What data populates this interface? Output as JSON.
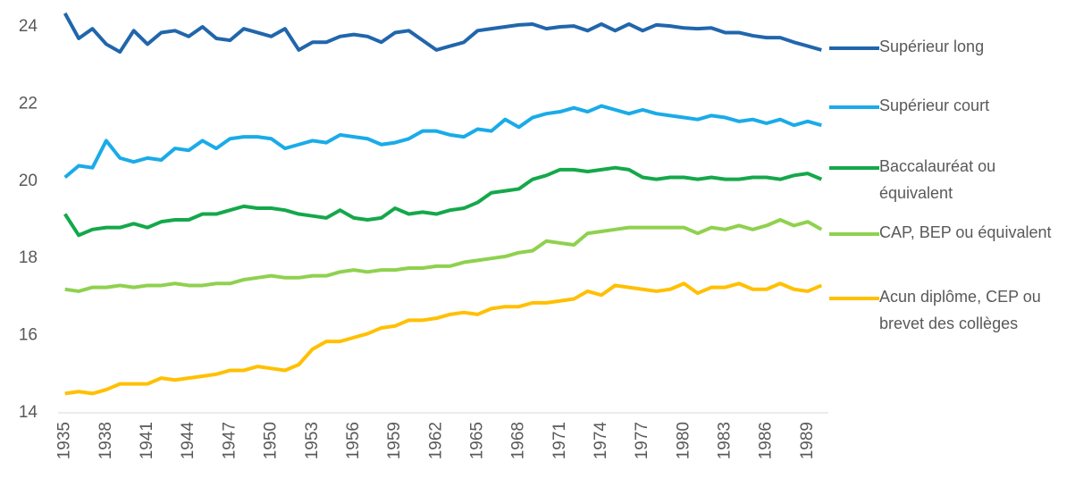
{
  "chart_data": {
    "type": "line",
    "x": [
      1935,
      1936,
      1937,
      1938,
      1939,
      1940,
      1941,
      1942,
      1943,
      1944,
      1945,
      1946,
      1947,
      1948,
      1949,
      1950,
      1951,
      1952,
      1953,
      1954,
      1955,
      1956,
      1957,
      1958,
      1959,
      1960,
      1961,
      1962,
      1963,
      1964,
      1965,
      1966,
      1967,
      1968,
      1969,
      1970,
      1971,
      1972,
      1973,
      1974,
      1975,
      1976,
      1977,
      1978,
      1979,
      1980,
      1981,
      1982,
      1983,
      1984,
      1985,
      1986,
      1987,
      1988,
      1989,
      1990
    ],
    "xlim": [
      1934.5,
      1990.5
    ],
    "xticks": [
      1935,
      1938,
      1941,
      1944,
      1947,
      1950,
      1953,
      1956,
      1959,
      1962,
      1965,
      1968,
      1971,
      1974,
      1977,
      1980,
      1983,
      1986,
      1989
    ],
    "ylim": [
      14,
      24.5
    ],
    "yticks": [
      14,
      16,
      18,
      20,
      22,
      24
    ],
    "grid": false,
    "series": [
      {
        "name": "Supérieur long",
        "color": "#2166ac",
        "values": [
          24.35,
          23.7,
          23.95,
          23.55,
          23.35,
          23.9,
          23.55,
          23.85,
          23.9,
          23.75,
          24.0,
          23.7,
          23.65,
          23.95,
          23.85,
          23.75,
          23.95,
          23.4,
          23.6,
          23.6,
          23.75,
          23.8,
          23.75,
          23.6,
          23.85,
          23.9,
          23.65,
          23.4,
          23.5,
          23.6,
          23.9,
          23.95,
          24.0,
          24.05,
          24.07,
          23.95,
          24.0,
          24.02,
          23.9,
          24.07,
          23.9,
          24.07,
          23.9,
          24.05,
          24.02,
          23.97,
          23.95,
          23.97,
          23.85,
          23.85,
          23.77,
          23.72,
          23.72,
          23.6,
          23.5,
          23.4
        ]
      },
      {
        "name": "Supérieur court",
        "color": "#1aabe8",
        "values": [
          20.1,
          20.4,
          20.35,
          21.05,
          20.6,
          20.5,
          20.6,
          20.55,
          20.85,
          20.8,
          21.05,
          20.85,
          21.1,
          21.15,
          21.15,
          21.1,
          20.85,
          20.95,
          21.05,
          21.0,
          21.2,
          21.15,
          21.1,
          20.95,
          21.0,
          21.1,
          21.3,
          21.3,
          21.2,
          21.15,
          21.35,
          21.3,
          21.6,
          21.4,
          21.65,
          21.75,
          21.8,
          21.9,
          21.8,
          21.95,
          21.85,
          21.75,
          21.85,
          21.75,
          21.7,
          21.65,
          21.6,
          21.7,
          21.65,
          21.55,
          21.6,
          21.5,
          21.6,
          21.45,
          21.55,
          21.45
        ]
      },
      {
        "name": "Baccalauréat ou équivalent",
        "color": "#14a84a",
        "values": [
          19.15,
          18.6,
          18.75,
          18.8,
          18.8,
          18.9,
          18.8,
          18.95,
          19.0,
          19.0,
          19.15,
          19.15,
          19.25,
          19.35,
          19.3,
          19.3,
          19.25,
          19.15,
          19.1,
          19.05,
          19.25,
          19.05,
          19.0,
          19.05,
          19.3,
          19.15,
          19.2,
          19.15,
          19.25,
          19.3,
          19.45,
          19.7,
          19.75,
          19.8,
          20.05,
          20.15,
          20.3,
          20.3,
          20.25,
          20.3,
          20.35,
          20.3,
          20.1,
          20.05,
          20.1,
          20.1,
          20.05,
          20.1,
          20.05,
          20.05,
          20.1,
          20.1,
          20.05,
          20.15,
          20.2,
          20.05
        ]
      },
      {
        "name": "CAP, BEP ou équivalent",
        "color": "#8fd14f",
        "values": [
          17.2,
          17.15,
          17.25,
          17.25,
          17.3,
          17.25,
          17.3,
          17.3,
          17.35,
          17.3,
          17.3,
          17.35,
          17.35,
          17.45,
          17.5,
          17.55,
          17.5,
          17.5,
          17.55,
          17.55,
          17.65,
          17.7,
          17.65,
          17.7,
          17.7,
          17.75,
          17.75,
          17.8,
          17.8,
          17.9,
          17.95,
          18.0,
          18.05,
          18.15,
          18.2,
          18.45,
          18.4,
          18.35,
          18.65,
          18.7,
          18.75,
          18.8,
          18.8,
          18.8,
          18.8,
          18.8,
          18.65,
          18.8,
          18.75,
          18.85,
          18.75,
          18.85,
          19.0,
          18.85,
          18.95,
          18.75
        ]
      },
      {
        "name": "Acun diplôme, CEP ou brevet des collèges",
        "color": "#ffc000",
        "values": [
          14.5,
          14.55,
          14.5,
          14.6,
          14.75,
          14.75,
          14.75,
          14.9,
          14.85,
          14.9,
          14.95,
          15.0,
          15.1,
          15.1,
          15.2,
          15.15,
          15.1,
          15.25,
          15.65,
          15.85,
          15.85,
          15.95,
          16.05,
          16.2,
          16.25,
          16.4,
          16.4,
          16.45,
          16.55,
          16.6,
          16.55,
          16.7,
          16.75,
          16.75,
          16.85,
          16.85,
          16.9,
          16.95,
          17.15,
          17.05,
          17.3,
          17.25,
          17.2,
          17.15,
          17.2,
          17.35,
          17.1,
          17.25,
          17.25,
          17.35,
          17.2,
          17.2,
          17.35,
          17.2,
          17.15,
          17.3
        ]
      }
    ]
  }
}
